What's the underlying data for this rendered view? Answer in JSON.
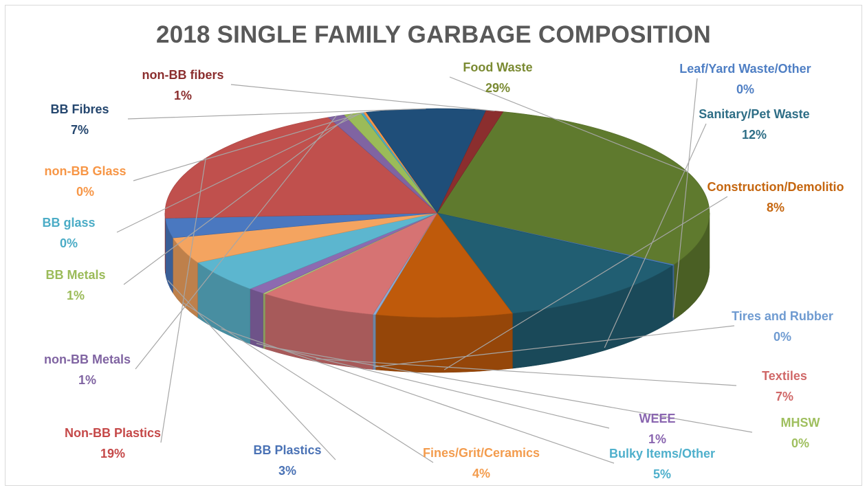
{
  "chart_data": {
    "type": "pie",
    "title": "2018 SINGLE FAMILY GARBAGE COMPOSITION",
    "slices": [
      {
        "label": "Food Waste",
        "value": 29,
        "display": "29%",
        "color": "#5f7a2e",
        "label_color": "#7a8a32"
      },
      {
        "label": "Leaf/Yard Waste/Other",
        "value": 0,
        "display": "0%",
        "color": "#4f81bd",
        "label_color": "#4f7fc4"
      },
      {
        "label": "Sanitary/Pet Waste",
        "value": 12,
        "display": "12%",
        "color": "#215e72",
        "label_color": "#2e6e86"
      },
      {
        "label": "Construction/Demolitio",
        "value": 8,
        "display": "8%",
        "color": "#bf5a0b",
        "label_color": "#c5660f"
      },
      {
        "label": "Tires and Rubber",
        "value": 0,
        "display": "0%",
        "color": "#8aaad4",
        "label_color": "#6f9bd1"
      },
      {
        "label": "Textiles",
        "value": 7,
        "display": "7%",
        "color": "#d67373",
        "label_color": "#d06868"
      },
      {
        "label": "MHSW",
        "value": 0,
        "display": "0%",
        "color": "#b4c77a",
        "label_color": "#9fbf5e"
      },
      {
        "label": "WEEE",
        "value": 1,
        "display": "1%",
        "color": "#8d6ab0",
        "label_color": "#8a66b0"
      },
      {
        "label": "Bulky Items/Other",
        "value": 5,
        "display": "5%",
        "color": "#5cb6cf",
        "label_color": "#4fb0cc"
      },
      {
        "label": "Fines/Grit/Ceramics",
        "value": 4,
        "display": "4%",
        "color": "#f4a460",
        "label_color": "#f39c4e"
      },
      {
        "label": "BB Plastics",
        "value": 3,
        "display": "3%",
        "color": "#4a78c0",
        "label_color": "#4a72b5"
      },
      {
        "label": "Non-BB Plastics",
        "value": 19,
        "display": "19%",
        "color": "#c0504d",
        "label_color": "#c54848"
      },
      {
        "label": "non-BB Metals",
        "value": 1,
        "display": "1%",
        "color": "#8064a2",
        "label_color": "#8064a2"
      },
      {
        "label": "BB Metals",
        "value": 1,
        "display": "1%",
        "color": "#9bbb59",
        "label_color": "#9bbb59"
      },
      {
        "label": "BB glass",
        "value": 0,
        "display": "0%",
        "color": "#4bacc6",
        "label_color": "#4bacc6"
      },
      {
        "label": "non-BB Glass",
        "value": 0,
        "display": "0%",
        "color": "#f79646",
        "label_color": "#f79646"
      },
      {
        "label": "BB Fibres",
        "value": 7,
        "display": "7%",
        "color": "#1f4e79",
        "label_color": "#24466e"
      },
      {
        "label": "non-BB fibers",
        "value": 1,
        "display": "1%",
        "color": "#8b2e2e",
        "label_color": "#8b2e2e"
      }
    ],
    "legend": "none"
  }
}
